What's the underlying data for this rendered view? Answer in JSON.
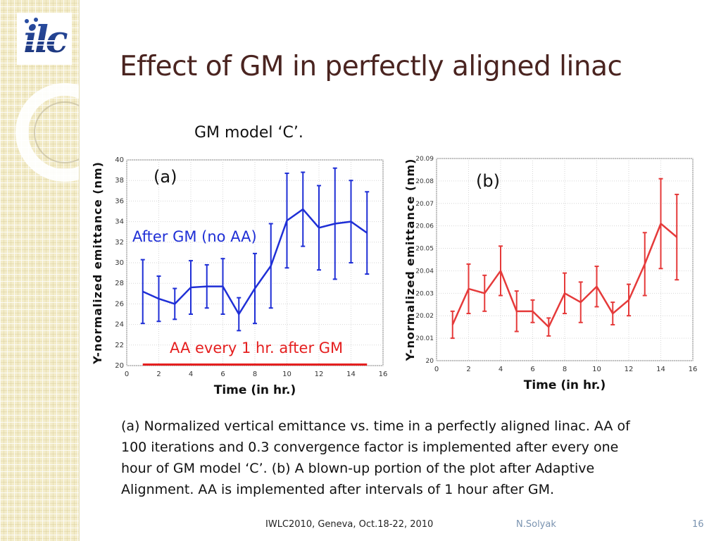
{
  "slide": {
    "title": "Effect of GM in perfectly aligned linac",
    "subtitle": "GM model ‘C’.",
    "caption_lines": [
      "(a) Normalized vertical emittance vs. time in a perfectly aligned linac.  AA of",
      "100 iterations and 0.3 convergence factor is implemented after every one",
      "hour of GM model ‘C’. (b) A blown-up portion of the plot after Adaptive",
      "Alignment.  AA is implemented after intervals of 1 hour after GM."
    ],
    "footer": {
      "event": "IWLC2010, Geneva, Oct.18-22, 2010",
      "author": "N.Solyak",
      "page": "16"
    },
    "logo_text": "ilc"
  },
  "colors": {
    "title": "#4a2420",
    "series_a": "#1f2fd6",
    "series_aa": "#e51f1f",
    "series_b": "#e53a3a",
    "author": "#7a93b0"
  },
  "chart_data": [
    {
      "type": "line",
      "panel_label": "(a)",
      "xlabel": "Time (in hr.)",
      "ylabel": "Y-normalized emittance (nm)",
      "xlim": [
        0,
        16
      ],
      "ylim": [
        20,
        40
      ],
      "xticks": [
        "0",
        "2",
        "4",
        "6",
        "8",
        "10",
        "12",
        "14",
        "16"
      ],
      "yticks": [
        "20",
        "22",
        "24",
        "26",
        "28",
        "30",
        "32",
        "34",
        "36",
        "38",
        "40"
      ],
      "grid": true,
      "series": [
        {
          "name": "After GM (no AA)",
          "x": [
            1,
            2,
            3,
            4,
            5,
            6,
            7,
            8,
            9,
            10,
            11,
            12,
            13,
            14,
            15
          ],
          "values": [
            27.2,
            26.5,
            26.0,
            27.6,
            27.7,
            27.7,
            25.0,
            27.5,
            29.7,
            34.1,
            35.2,
            33.4,
            33.8,
            34.0,
            32.9
          ],
          "err": [
            3.1,
            2.2,
            1.5,
            2.6,
            2.1,
            2.7,
            1.6,
            3.4,
            4.1,
            4.6,
            3.6,
            4.1,
            5.4,
            4.0,
            4.0
          ]
        },
        {
          "name": "AA every 1 hr. after GM",
          "x": [
            1,
            15
          ],
          "values": [
            20.1,
            20.1
          ]
        }
      ]
    },
    {
      "type": "line",
      "panel_label": "(b)",
      "xlabel": "Time (in hr.)",
      "ylabel": "Y-normalized emittance (nm)",
      "xlim": [
        0,
        16
      ],
      "ylim": [
        20,
        20.09
      ],
      "xticks": [
        "0",
        "2",
        "4",
        "6",
        "8",
        "10",
        "12",
        "14",
        "16"
      ],
      "yticks": [
        "20",
        "20.01",
        "20.02",
        "20.03",
        "20.04",
        "20.05",
        "20.06",
        "20.07",
        "20.08",
        "20.09"
      ],
      "grid": true,
      "series": [
        {
          "x": [
            1,
            2,
            3,
            4,
            5,
            6,
            7,
            8,
            9,
            10,
            11,
            12,
            13,
            14,
            15
          ],
          "values": [
            20.016,
            20.032,
            20.03,
            20.04,
            20.022,
            20.022,
            20.015,
            20.03,
            20.026,
            20.033,
            20.021,
            20.027,
            20.043,
            20.061,
            20.055
          ],
          "err": [
            0.006,
            0.011,
            0.008,
            0.011,
            0.009,
            0.005,
            0.004,
            0.009,
            0.009,
            0.009,
            0.005,
            0.007,
            0.014,
            0.02,
            0.019
          ]
        }
      ]
    }
  ]
}
